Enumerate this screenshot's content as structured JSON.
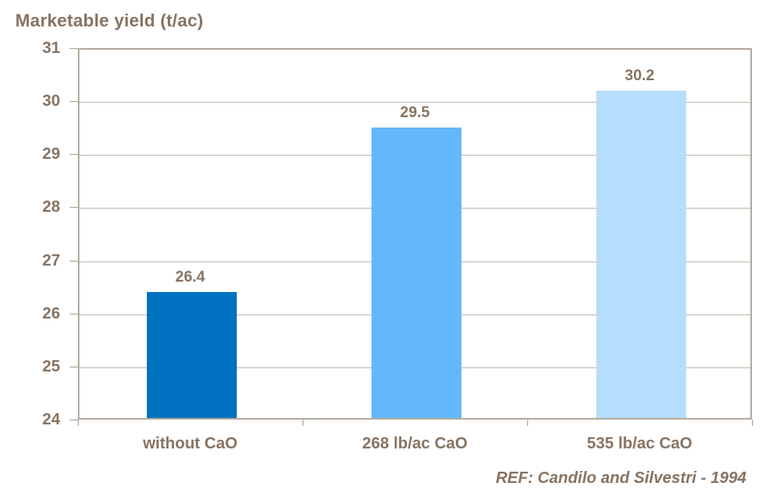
{
  "title": "Marketable yield (t/ac)",
  "footer": {
    "ref": "REF: Candilo and Silvestri - 1994"
  },
  "colors": {
    "text": "#877363",
    "axis": "#B3A99D",
    "gridline": "#C0B7AC",
    "bars": [
      "#0071C0",
      "#63B8FB",
      "#B6DDFC"
    ]
  },
  "chart_data": {
    "type": "bar",
    "title": "Marketable yield (t/ac)",
    "categories": [
      "without CaO",
      "268 lb/ac CaO",
      "535 lb/ac CaO"
    ],
    "values": [
      26.4,
      29.5,
      30.2
    ],
    "data_labels": [
      "26.4",
      "29.5",
      "30.2"
    ],
    "xlabel": "",
    "ylabel": "",
    "ylim": [
      24,
      31
    ],
    "yticks": [
      24,
      25,
      26,
      27,
      28,
      29,
      30,
      31
    ],
    "grid": true,
    "legend": false,
    "annotation": "REF: Candilo and Silvestri - 1994"
  }
}
